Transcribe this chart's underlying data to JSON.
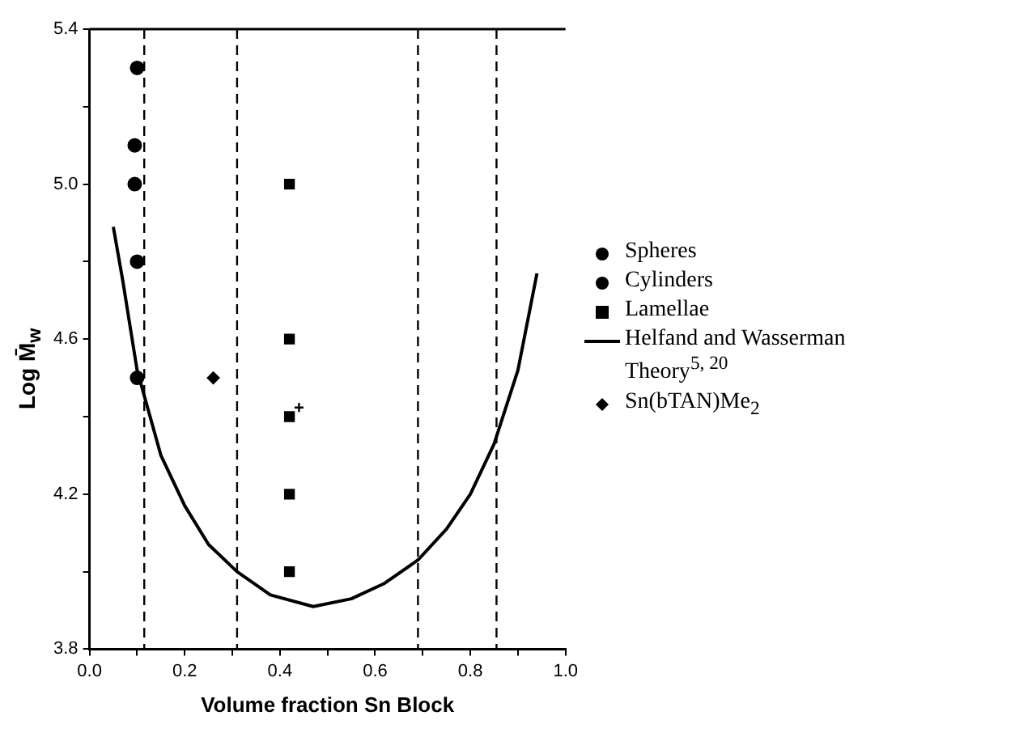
{
  "chart_data": {
    "type": "scatter",
    "xlabel": "Volume fraction Sn Block",
    "ylabel": "Log M̄$_{w}$",
    "xlim": [
      0,
      1
    ],
    "ylim": [
      3.8,
      5.4
    ],
    "xticks": [
      {
        "value": 0,
        "label": "0.0"
      },
      {
        "value": 0.1,
        "label": null
      },
      {
        "value": 0.2,
        "label": "0.2"
      },
      {
        "value": 0.3,
        "label": null
      },
      {
        "value": 0.4,
        "label": "0.4"
      },
      {
        "value": 0.5,
        "label": null
      },
      {
        "value": 0.6,
        "label": "0.6"
      },
      {
        "value": 0.7,
        "label": null
      },
      {
        "value": 0.8,
        "label": "0.8"
      },
      {
        "value": 0.9,
        "label": null
      },
      {
        "value": 1,
        "label": "1.0"
      }
    ],
    "yticks": [
      {
        "value": 3.8,
        "label": "3.8"
      },
      {
        "value": 4.0,
        "label": null
      },
      {
        "value": 4.2,
        "label": "4.2"
      },
      {
        "value": 4.4,
        "label": null
      },
      {
        "value": 4.6,
        "label": "4.6"
      },
      {
        "value": 4.8,
        "label": null
      },
      {
        "value": 5.0,
        "label": "5.0"
      },
      {
        "value": 5.2,
        "label": null
      },
      {
        "value": 5.4,
        "label": "5.4"
      }
    ],
    "grid": false,
    "legend": "right",
    "series": [
      {
        "name": "Spheres",
        "type": "scatter",
        "marker": "circle",
        "color": "#000000",
        "x": [
          0.1,
          0.095,
          0.095,
          0.1
        ],
        "values": [
          5.3,
          5.1,
          5.0,
          4.8
        ]
      },
      {
        "name": "Cylinders",
        "type": "scatter",
        "marker": "circle",
        "color": "#000000",
        "x": [
          0.1
        ],
        "values": [
          4.5
        ]
      },
      {
        "name": "Lamellae",
        "type": "scatter",
        "marker": "square",
        "color": "#000000",
        "x": [
          0.42,
          0.42,
          0.42,
          0.42,
          0.42
        ],
        "values": [
          5.0,
          4.6,
          4.4,
          4.2,
          4.0
        ]
      },
      {
        "name": "Helfand and Wasserman Theory$^{5, 20}$",
        "type": "line",
        "marker": "none",
        "line_style": "solid",
        "color": "#000000",
        "x": [
          0.05,
          0.07,
          0.1,
          0.15,
          0.2,
          0.25,
          0.31,
          0.38,
          0.47,
          0.55,
          0.62,
          0.69,
          0.75,
          0.8,
          0.85,
          0.9,
          0.94
        ],
        "values": [
          4.89,
          4.75,
          4.52,
          4.3,
          4.17,
          4.07,
          4.0,
          3.94,
          3.91,
          3.93,
          3.97,
          4.03,
          4.11,
          4.2,
          4.33,
          4.52,
          4.77
        ]
      },
      {
        "name": "Sn(bTAN)Me$_{2}$",
        "type": "scatter",
        "marker": "diamond",
        "color": "#000000",
        "x": [
          0.26
        ],
        "values": [
          4.5
        ]
      }
    ],
    "ref_lines": [
      {
        "axis": "x",
        "value": 0.115,
        "line_style": "dashed",
        "color": "#000000"
      },
      {
        "axis": "x",
        "value": 0.31,
        "line_style": "dashed",
        "color": "#000000"
      },
      {
        "axis": "x",
        "value": 0.69,
        "line_style": "dashed",
        "color": "#000000"
      },
      {
        "axis": "x",
        "value": 0.855,
        "line_style": "dashed",
        "color": "#000000"
      }
    ],
    "annotations": [
      {
        "text": "+",
        "x": 0.44,
        "y": 4.42
      }
    ]
  }
}
